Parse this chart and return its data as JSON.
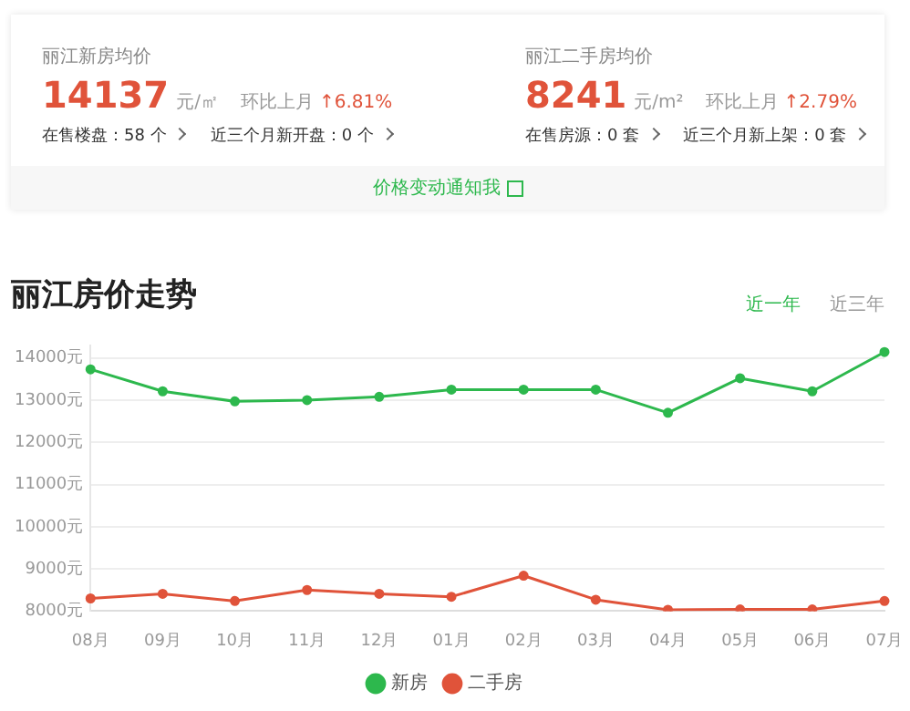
{
  "chart_data": [
    {
      "type": "other",
      "annotations": [
        "丽江新房均价",
        "14137",
        "元/㎡",
        "环比上月",
        "↑6.81%",
        "在售楼盘：58 个",
        "近三个月新开盘：0 个",
        "丽江二手房均价",
        "8241",
        "元/m²",
        "环比上月",
        "↑2.79%",
        "在售房源：0 套",
        "近三个月新上架：0 套",
        "价格变动通知我"
      ]
    },
    {
      "type": "line",
      "title": "丽江房价走势",
      "annotations": [
        "近一年",
        "近三年"
      ],
      "categories": [
        "08月",
        "09月",
        "10月",
        "11月",
        "12月",
        "01月",
        "02月",
        "03月",
        "04月",
        "05月",
        "06月",
        "07月"
      ],
      "series": [
        {
          "name": "新房",
          "color": "#2db84d",
          "values": [
            13730,
            13210,
            12970,
            13000,
            13080,
            13250,
            13250,
            13250,
            12700,
            13520,
            13210,
            14140
          ]
        },
        {
          "name": "二手房",
          "color": "#e0533a",
          "values": [
            8300,
            8410,
            8240,
            8500,
            8410,
            8340,
            8840,
            8270,
            8030,
            8040,
            8040,
            8240
          ]
        }
      ],
      "ylim": [
        8000,
        14300
      ],
      "yticks": [
        {
          "value": 8000,
          "label": "8000元"
        },
        {
          "value": 9000,
          "label": "9000元"
        },
        {
          "value": 10000,
          "label": "10000元"
        },
        {
          "value": 11000,
          "label": "11000元"
        },
        {
          "value": 12000,
          "label": "12000元"
        },
        {
          "value": 13000,
          "label": "13000元"
        },
        {
          "value": 14000,
          "label": "14000元"
        }
      ],
      "grid": "y",
      "legend": "bottom",
      "marker": "circle",
      "line_style": "solid"
    }
  ]
}
